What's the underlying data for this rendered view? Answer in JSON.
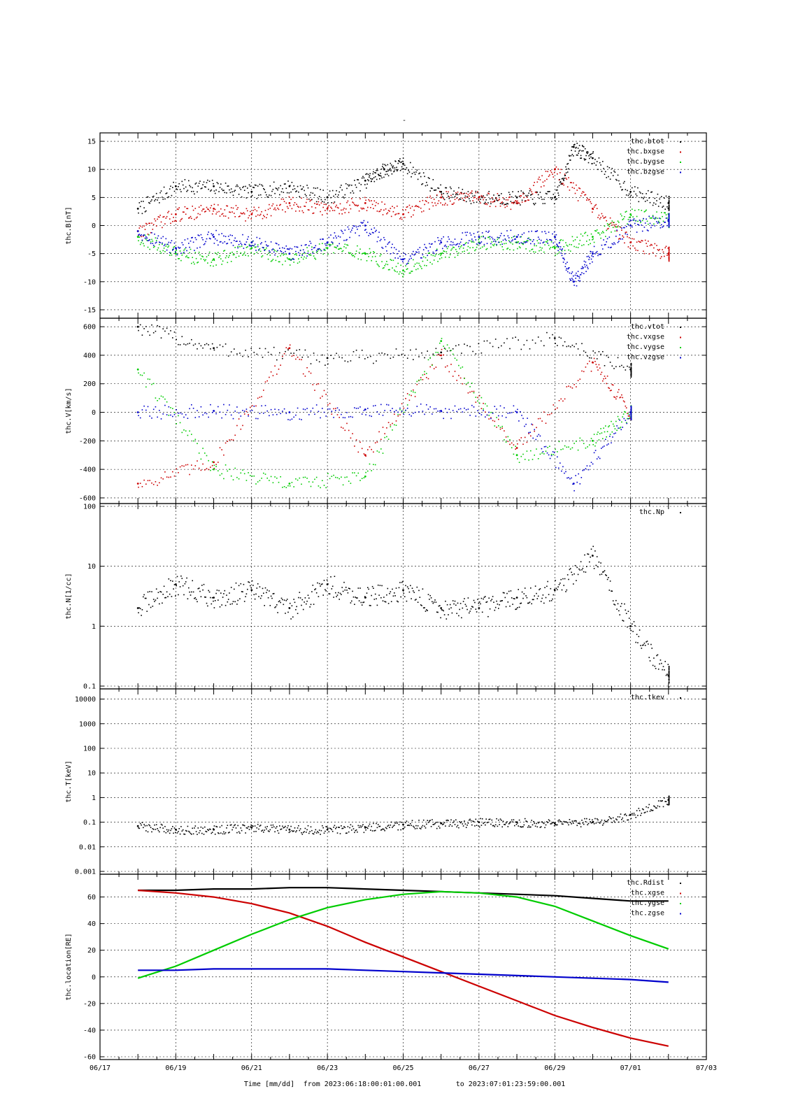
{
  "title": "-",
  "xlabel_time": "Time [mm/dd]",
  "xlabel_from": "from 2023:06:18:00:01:00.001",
  "xlabel_to": "to  2023:07:01:23:59:00.001",
  "x_tick_labels": [
    "06/17",
    "06/19",
    "06/21",
    "06/23",
    "06/25",
    "06/27",
    "06/29",
    "07/01",
    "07/03"
  ],
  "colors": {
    "black": "#000000",
    "red": "#cc0000",
    "green": "#00cc00",
    "blue": "#0000cc"
  },
  "chart_data": [
    {
      "type": "scatter",
      "ylabel": "thc.B[nT]",
      "scale": "linear",
      "ylim": [
        -16,
        16
      ],
      "yticks": [
        -15,
        -10,
        -5,
        0,
        5,
        10,
        15
      ],
      "ytick_labels": [
        "-15",
        "-10",
        "-5",
        "0",
        "5",
        "10",
        "15"
      ],
      "x_range": [
        "06/17",
        "07/03"
      ],
      "grid": true,
      "legend_placement": "top-right",
      "series": [
        {
          "name": "thc.btot",
          "color": "black",
          "x": [
            "06/18",
            "06/19",
            "06/20",
            "06/21",
            "06/22",
            "06/23",
            "06/24",
            "06/24 12h",
            "06/25",
            "06/26",
            "06/27",
            "06/28",
            "06/29",
            "06/29 12h",
            "06/30",
            "07/01",
            "07/02"
          ],
          "y": [
            3,
            7,
            7,
            6,
            7,
            5,
            8,
            10,
            11,
            6,
            5,
            5,
            5,
            14,
            12,
            6,
            4
          ]
        },
        {
          "name": "thc.bxgse",
          "color": "red",
          "x": [
            "06/18",
            "06/19",
            "06/20",
            "06/21",
            "06/22",
            "06/23",
            "06/24",
            "06/25",
            "06/26",
            "06/27",
            "06/28",
            "06/29",
            "06/30",
            "07/01",
            "07/02"
          ],
          "y": [
            -1,
            2,
            3,
            2,
            4,
            3,
            4,
            2,
            5,
            5,
            4,
            10,
            3,
            -3,
            -5
          ]
        },
        {
          "name": "thc.bygse",
          "color": "green",
          "x": [
            "06/18",
            "06/19",
            "06/20",
            "06/21",
            "06/22",
            "06/23",
            "06/24",
            "06/25",
            "06/26",
            "06/27",
            "06/28",
            "06/29",
            "06/30",
            "07/01",
            "07/02"
          ],
          "y": [
            -2,
            -5,
            -6,
            -4,
            -6,
            -4,
            -5,
            -8,
            -5,
            -3,
            -3,
            -4,
            -2,
            2,
            1
          ]
        },
        {
          "name": "thc.bzgse",
          "color": "blue",
          "x": [
            "06/18",
            "06/19",
            "06/20",
            "06/21",
            "06/22",
            "06/23",
            "06/24",
            "06/25",
            "06/26",
            "06/27",
            "06/28",
            "06/29",
            "06/29 12h",
            "06/30",
            "07/01",
            "07/02"
          ],
          "y": [
            -1,
            -4,
            -2,
            -3,
            -5,
            -3,
            0,
            -6,
            -3,
            -2,
            -2,
            -2,
            -10,
            -5,
            0,
            1
          ]
        }
      ]
    },
    {
      "type": "scatter",
      "ylabel": "thc.V[km/s]",
      "scale": "linear",
      "ylim": [
        -620,
        640
      ],
      "yticks": [
        -600,
        -400,
        -200,
        0,
        200,
        400,
        600
      ],
      "ytick_labels": [
        "-600",
        "-400",
        "-200",
        "0",
        "200",
        "400",
        "600"
      ],
      "x_range": [
        "06/17",
        "07/03"
      ],
      "grid": true,
      "legend_placement": "top-right",
      "series": [
        {
          "name": "thc.vtot",
          "color": "black",
          "x": [
            "06/18",
            "06/20",
            "06/23",
            "06/26",
            "06/29",
            "07/01"
          ],
          "y": [
            600,
            450,
            380,
            420,
            520,
            300
          ]
        },
        {
          "name": "thc.vxgse",
          "color": "red",
          "x": [
            "06/18",
            "06/20",
            "06/22",
            "06/24",
            "06/26",
            "06/28",
            "06/30",
            "07/01"
          ],
          "y": [
            -500,
            -350,
            450,
            -300,
            400,
            -250,
            350,
            0
          ]
        },
        {
          "name": "thc.vygse",
          "color": "green",
          "x": [
            "06/18",
            "06/20",
            "06/22",
            "06/24",
            "06/26",
            "06/28",
            "06/30",
            "07/01"
          ],
          "y": [
            300,
            -400,
            -500,
            -450,
            500,
            -300,
            -200,
            0
          ]
        },
        {
          "name": "thc.vzgse",
          "color": "blue",
          "x": [
            "06/18",
            "06/20",
            "06/22",
            "06/24",
            "06/26",
            "06/28",
            "06/29 12h",
            "07/01"
          ],
          "y": [
            0,
            10,
            0,
            20,
            10,
            0,
            -500,
            0
          ]
        }
      ]
    },
    {
      "type": "scatter",
      "ylabel": "thc.N[1/cc]",
      "scale": "log",
      "ylim": [
        0.1,
        100
      ],
      "yticks": [
        0.1,
        1,
        10,
        100
      ],
      "ytick_labels": [
        "0.1",
        "1",
        "10",
        "100"
      ],
      "x_range": [
        "06/17",
        "07/03"
      ],
      "grid": true,
      "legend_placement": "top-right",
      "series": [
        {
          "name": "thc.Np",
          "color": "black",
          "x": [
            "06/18",
            "06/19",
            "06/20",
            "06/21",
            "06/22",
            "06/23",
            "06/24",
            "06/25",
            "06/26",
            "06/27",
            "06/28",
            "06/29",
            "06/30",
            "07/01",
            "07/02"
          ],
          "y": [
            2,
            5,
            3,
            4,
            2,
            5,
            3,
            4,
            2,
            2,
            3,
            4,
            15,
            1,
            0.15
          ]
        }
      ]
    },
    {
      "type": "scatter",
      "ylabel": "thc.T[keV]",
      "scale": "log",
      "ylim": [
        0.001,
        20000
      ],
      "yticks": [
        0.001,
        0.01,
        0.1,
        1,
        10,
        100,
        1000,
        10000
      ],
      "ytick_labels": [
        "0.001",
        "0.01",
        "0.1",
        "1",
        "10",
        "100",
        "1000",
        "10000"
      ],
      "x_range": [
        "06/17",
        "07/03"
      ],
      "grid": true,
      "legend_placement": "top-right",
      "series": [
        {
          "name": "thc.tkev",
          "color": "black",
          "x": [
            "06/18",
            "06/19",
            "06/20",
            "06/21",
            "06/22",
            "06/23",
            "06/24",
            "06/25",
            "06/26",
            "06/27",
            "06/28",
            "06/29",
            "06/30",
            "07/01",
            "07/02"
          ],
          "y": [
            0.07,
            0.05,
            0.05,
            0.06,
            0.05,
            0.05,
            0.06,
            0.08,
            0.09,
            0.1,
            0.1,
            0.09,
            0.1,
            0.2,
            0.8
          ]
        }
      ]
    },
    {
      "type": "line",
      "ylabel": "thc.location[RE]",
      "scale": "linear",
      "ylim": [
        -60,
        75
      ],
      "yticks": [
        -60,
        -40,
        -20,
        0,
        20,
        40,
        60
      ],
      "ytick_labels": [
        "-60",
        "-40",
        "-20",
        "0",
        "20",
        "40",
        "60"
      ],
      "x_range": [
        "06/17",
        "07/03"
      ],
      "grid": true,
      "legend_placement": "top-right",
      "series": [
        {
          "name": "thc.Rdist",
          "color": "black",
          "x": [
            "06/18",
            "06/19",
            "06/20",
            "06/21",
            "06/22",
            "06/23",
            "06/24",
            "06/25",
            "06/26",
            "06/27",
            "06/28",
            "06/29",
            "06/30",
            "07/01",
            "07/02"
          ],
          "y": [
            65,
            65,
            66,
            66,
            67,
            67,
            66,
            65,
            64,
            63,
            62,
            61,
            59,
            57,
            57
          ]
        },
        {
          "name": "thc.xgse",
          "color": "red",
          "x": [
            "06/18",
            "06/19",
            "06/20",
            "06/21",
            "06/22",
            "06/23",
            "06/24",
            "06/25",
            "06/26",
            "06/27",
            "06/28",
            "06/29",
            "06/30",
            "07/01",
            "07/02"
          ],
          "y": [
            65,
            63,
            60,
            55,
            48,
            38,
            26,
            15,
            4,
            -7,
            -18,
            -29,
            -38,
            -46,
            -52
          ]
        },
        {
          "name": "thc.ygse",
          "color": "green",
          "x": [
            "06/18",
            "06/19",
            "06/20",
            "06/21",
            "06/22",
            "06/23",
            "06/24",
            "06/25",
            "06/26",
            "06/27",
            "06/28",
            "06/29",
            "06/30",
            "07/01",
            "07/02"
          ],
          "y": [
            -1,
            8,
            20,
            32,
            43,
            52,
            58,
            62,
            64,
            63,
            60,
            53,
            42,
            31,
            21
          ]
        },
        {
          "name": "thc.zgse",
          "color": "blue",
          "x": [
            "06/18",
            "06/19",
            "06/20",
            "06/21",
            "06/22",
            "06/23",
            "06/24",
            "06/25",
            "06/26",
            "06/27",
            "06/28",
            "06/29",
            "06/30",
            "07/01",
            "07/02"
          ],
          "y": [
            5,
            5,
            6,
            6,
            6,
            6,
            5,
            4,
            3,
            2,
            1,
            0,
            -1,
            -2,
            -4
          ]
        }
      ]
    }
  ]
}
